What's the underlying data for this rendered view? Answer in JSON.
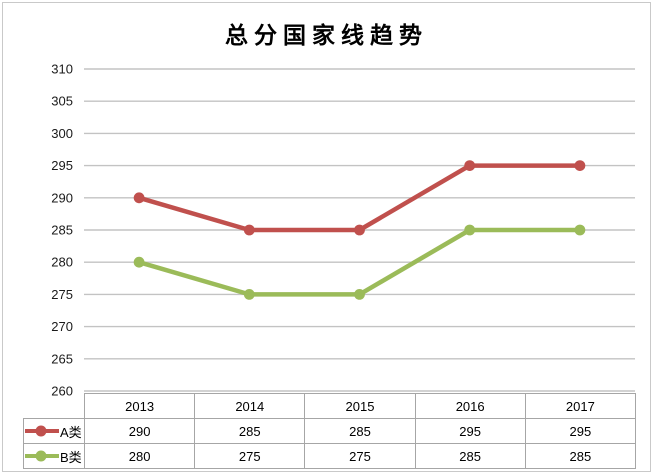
{
  "title": "总分国家线趋势",
  "colors": {
    "series_a": "#c0504d",
    "series_b": "#9bbb59",
    "gridline": "#c3c3c3",
    "table_border": "#a6a6a6",
    "text": "#000000",
    "frame_border": "#c9c9c9"
  },
  "chart_data": {
    "type": "line",
    "title": "总分国家线趋势",
    "categories": [
      "2013",
      "2014",
      "2015",
      "2016",
      "2017"
    ],
    "series": [
      {
        "name": "A类",
        "values": [
          290,
          285,
          285,
          295,
          295
        ],
        "color": "#c0504d"
      },
      {
        "name": "B类",
        "values": [
          280,
          275,
          275,
          285,
          285
        ],
        "color": "#9bbb59"
      }
    ],
    "xlabel": "",
    "ylabel": "",
    "ylim": [
      260,
      310
    ],
    "ytick_step": 5,
    "yticks": [
      310,
      305,
      300,
      295,
      290,
      285,
      280,
      275,
      270,
      265,
      260
    ],
    "grid": true,
    "marker": "circle",
    "legend_position": "data-table-left"
  }
}
